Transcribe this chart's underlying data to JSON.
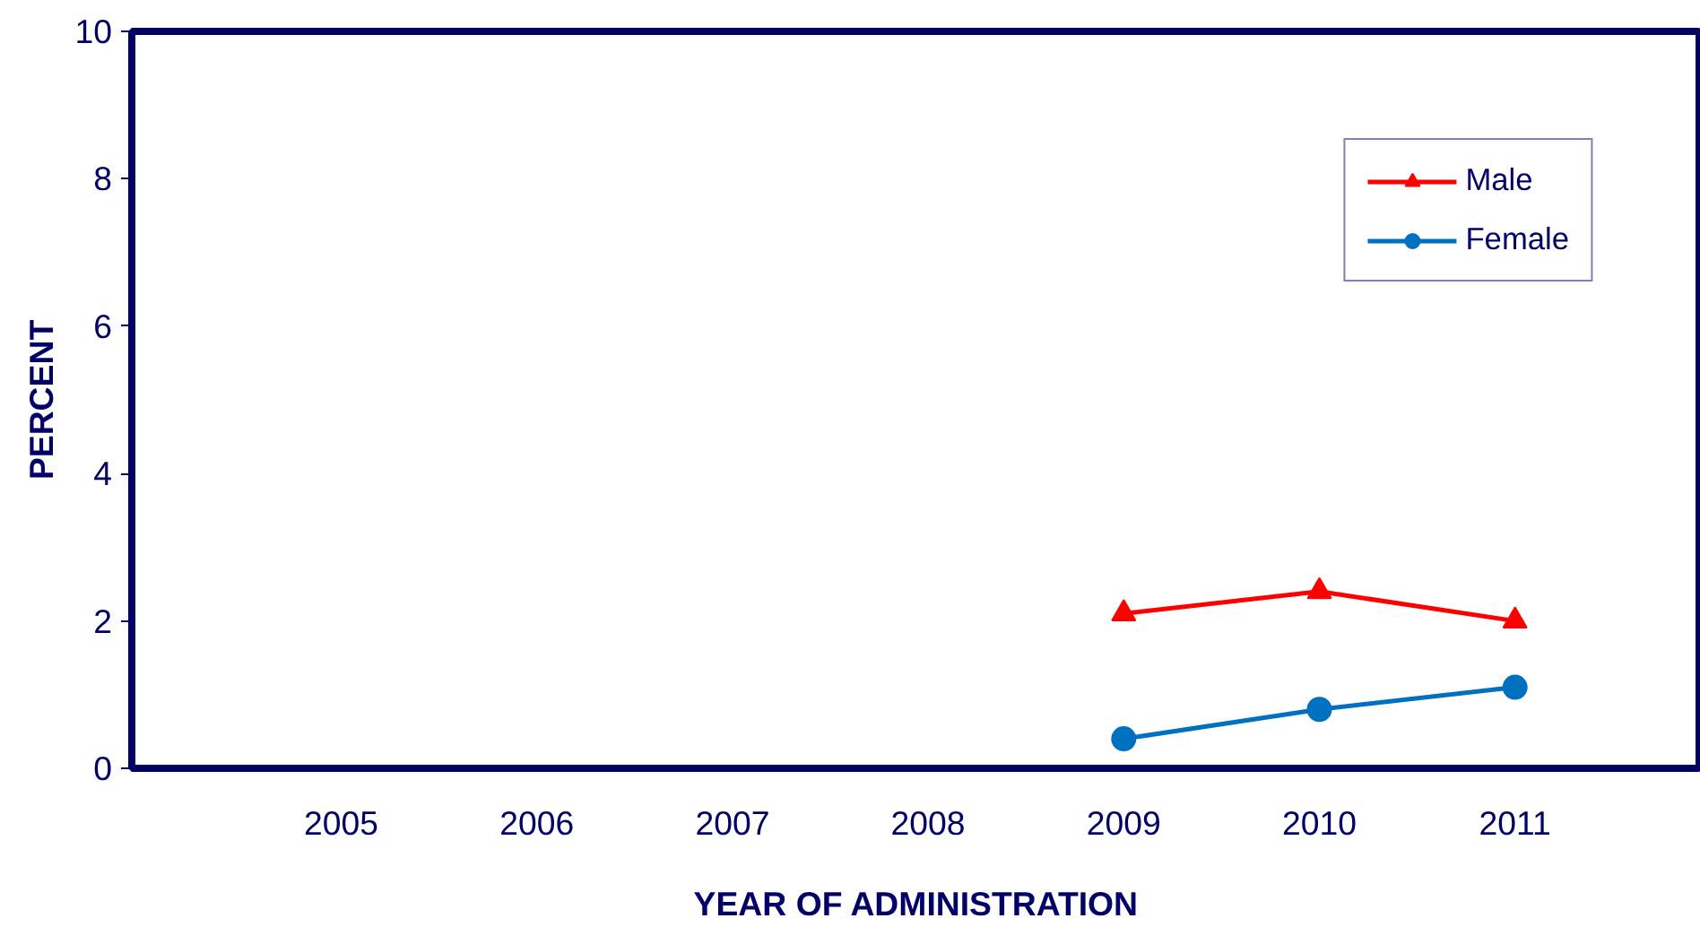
{
  "chart_data": {
    "type": "line",
    "xlabel": "YEAR OF ADMINISTRATION",
    "ylabel": "PERCENT",
    "categories": [
      "2005",
      "2006",
      "2007",
      "2008",
      "2009",
      "2010",
      "2011"
    ],
    "series": [
      {
        "name": "Male",
        "color": "#ff0000",
        "marker": "triangle",
        "values": [
          null,
          null,
          null,
          null,
          2.1,
          2.4,
          2.0
        ]
      },
      {
        "name": "Female",
        "color": "#0070c0",
        "marker": "circle",
        "values": [
          null,
          null,
          null,
          null,
          0.4,
          0.8,
          1.1
        ]
      }
    ],
    "ylim": [
      0,
      10
    ],
    "yticks": [
      0,
      2,
      4,
      6,
      8,
      10
    ],
    "grid": false,
    "legend": "top right"
  }
}
